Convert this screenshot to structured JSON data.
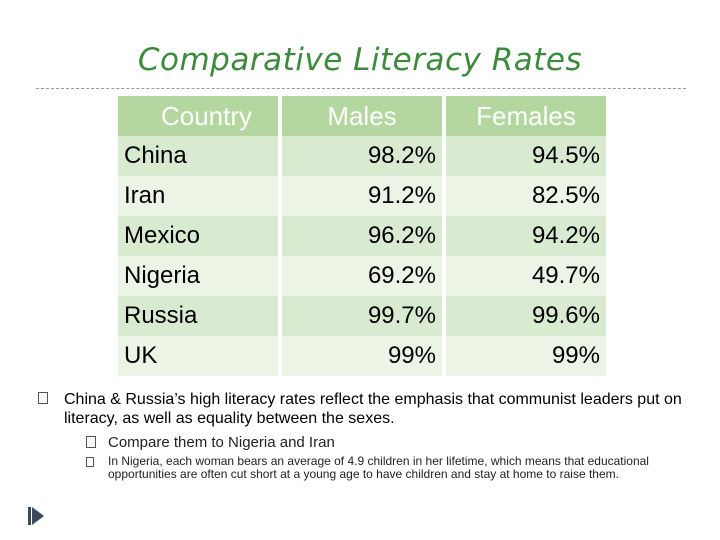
{
  "slide": {
    "title": "Comparative Literacy Rates"
  },
  "table": {
    "headers": [
      "Country",
      "Males",
      "Females"
    ],
    "rows": [
      [
        "China",
        "98.2%",
        "94.5%"
      ],
      [
        "Iran",
        "91.2%",
        "82.5%"
      ],
      [
        "Mexico",
        "96.2%",
        "94.2%"
      ],
      [
        "Nigeria",
        "69.2%",
        "49.7%"
      ],
      [
        "Russia",
        "99.7%",
        "99.6%"
      ],
      [
        "UK",
        "99%",
        "99%"
      ]
    ]
  },
  "bullets": {
    "level1": "China & Russia’s high literacy rates reflect the emphasis that communist leaders put on literacy, as well as equality between the sexes.",
    "level2": "Compare them to Nigeria and Iran",
    "level3": "In Nigeria, each woman bears an average of 4.9 children in her lifetime, which means that educational opportunities are often cut short at a young age to have children and stay at home to raise them."
  },
  "colors": {
    "title": "#3d8a3d",
    "header_bg": "#b4d7a0",
    "row_odd": "#d8ead0",
    "row_even": "#ecf4e6"
  }
}
